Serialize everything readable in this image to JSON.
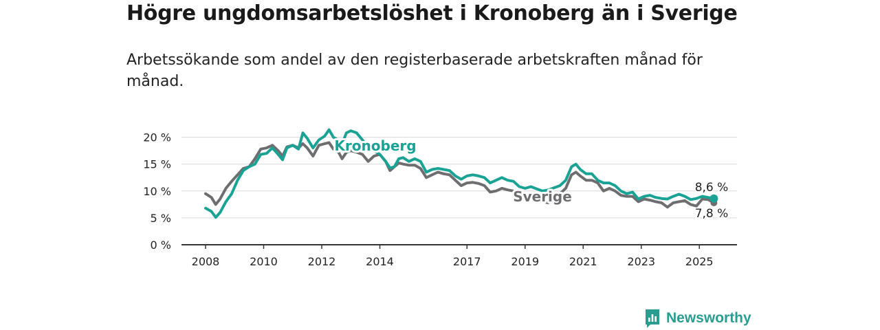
{
  "title": "Högre ungdomsarbetslöshet i Kronoberg än i Sverige",
  "subtitle": "Arbetssökande som andel av den registerbaserade arbetskraften månad för månad.",
  "brand": {
    "name": "Newsworthy",
    "color": "#2a9d91"
  },
  "chart_data": {
    "type": "line",
    "ylim": [
      0,
      22
    ],
    "xlim": [
      2007.5,
      2026.5
    ],
    "grid": true,
    "y_ticks": [
      0,
      5,
      10,
      15,
      20
    ],
    "y_tick_labels": [
      "0 %",
      "5 %",
      "10 %",
      "15 %",
      "20 %"
    ],
    "x_ticks": [
      2008,
      2010,
      2012,
      2014,
      2017,
      2019,
      2021,
      2023,
      2025
    ],
    "x_tick_labels": [
      "2008",
      "2010",
      "2012",
      "2014",
      "2017",
      "2019",
      "2021",
      "2023",
      "2025"
    ],
    "series": [
      {
        "name": "Kronoberg",
        "color": "#1aa395",
        "end_label": "8,6 %",
        "points": [
          [
            2008.0,
            6.8
          ],
          [
            2008.2,
            6.2
          ],
          [
            2008.35,
            5.1
          ],
          [
            2008.5,
            6.0
          ],
          [
            2008.7,
            8.0
          ],
          [
            2008.9,
            9.5
          ],
          [
            2009.1,
            12.0
          ],
          [
            2009.3,
            13.8
          ],
          [
            2009.5,
            14.5
          ],
          [
            2009.7,
            15.0
          ],
          [
            2009.9,
            16.8
          ],
          [
            2010.1,
            17.0
          ],
          [
            2010.3,
            18.0
          ],
          [
            2010.5,
            16.8
          ],
          [
            2010.65,
            15.8
          ],
          [
            2010.8,
            18.0
          ],
          [
            2011.0,
            18.5
          ],
          [
            2011.2,
            17.8
          ],
          [
            2011.35,
            20.8
          ],
          [
            2011.5,
            19.8
          ],
          [
            2011.7,
            18.0
          ],
          [
            2011.9,
            19.5
          ],
          [
            2012.1,
            20.2
          ],
          [
            2012.25,
            21.4
          ],
          [
            2012.4,
            20.0
          ],
          [
            2012.55,
            19.5
          ],
          [
            2012.7,
            18.8
          ],
          [
            2012.85,
            20.8
          ],
          [
            2013.0,
            21.2
          ],
          [
            2013.2,
            20.8
          ],
          [
            2013.4,
            19.5
          ],
          [
            2013.6,
            18.0
          ],
          [
            2013.8,
            17.5
          ],
          [
            2014.0,
            16.8
          ],
          [
            2014.2,
            15.5
          ],
          [
            2014.35,
            14.3
          ],
          [
            2014.5,
            14.5
          ],
          [
            2014.65,
            16.0
          ],
          [
            2014.8,
            16.2
          ],
          [
            2015.0,
            15.5
          ],
          [
            2015.2,
            16.0
          ],
          [
            2015.4,
            15.5
          ],
          [
            2015.6,
            13.5
          ],
          [
            2015.8,
            14.0
          ],
          [
            2016.0,
            14.2
          ],
          [
            2016.2,
            14.0
          ],
          [
            2016.4,
            13.8
          ],
          [
            2016.6,
            12.8
          ],
          [
            2016.8,
            12.2
          ],
          [
            2017.0,
            12.8
          ],
          [
            2017.2,
            13.0
          ],
          [
            2017.4,
            12.8
          ],
          [
            2017.6,
            12.5
          ],
          [
            2017.8,
            11.5
          ],
          [
            2018.0,
            12.0
          ],
          [
            2018.2,
            12.5
          ],
          [
            2018.4,
            12.0
          ],
          [
            2018.6,
            11.8
          ],
          [
            2018.8,
            10.8
          ],
          [
            2019.0,
            10.5
          ],
          [
            2019.2,
            10.8
          ],
          [
            2019.4,
            10.4
          ],
          [
            2019.6,
            10.0
          ],
          [
            2019.8,
            10.2
          ],
          [
            2020.0,
            10.6
          ],
          [
            2020.2,
            11.0
          ],
          [
            2020.4,
            12.0
          ],
          [
            2020.6,
            14.5
          ],
          [
            2020.75,
            15.0
          ],
          [
            2020.9,
            14.0
          ],
          [
            2021.1,
            13.2
          ],
          [
            2021.3,
            13.2
          ],
          [
            2021.5,
            12.0
          ],
          [
            2021.7,
            11.5
          ],
          [
            2021.9,
            11.5
          ],
          [
            2022.1,
            11.0
          ],
          [
            2022.3,
            10.0
          ],
          [
            2022.5,
            9.5
          ],
          [
            2022.7,
            9.8
          ],
          [
            2022.9,
            8.5
          ],
          [
            2023.1,
            9.0
          ],
          [
            2023.3,
            9.2
          ],
          [
            2023.5,
            8.8
          ],
          [
            2023.7,
            8.6
          ],
          [
            2023.9,
            8.5
          ],
          [
            2024.1,
            9.0
          ],
          [
            2024.3,
            9.4
          ],
          [
            2024.5,
            9.0
          ],
          [
            2024.7,
            8.4
          ],
          [
            2024.9,
            8.6
          ],
          [
            2025.1,
            9.0
          ],
          [
            2025.3,
            8.8
          ],
          [
            2025.5,
            8.6
          ]
        ]
      },
      {
        "name": "Sverige",
        "color": "#6e6e70",
        "end_label": "7,8 %",
        "points": [
          [
            2008.0,
            9.5
          ],
          [
            2008.2,
            8.8
          ],
          [
            2008.35,
            7.5
          ],
          [
            2008.5,
            8.5
          ],
          [
            2008.7,
            10.5
          ],
          [
            2008.9,
            11.8
          ],
          [
            2009.1,
            13.0
          ],
          [
            2009.3,
            14.2
          ],
          [
            2009.5,
            14.5
          ],
          [
            2009.7,
            16.0
          ],
          [
            2009.9,
            17.8
          ],
          [
            2010.1,
            18.0
          ],
          [
            2010.3,
            18.5
          ],
          [
            2010.5,
            17.5
          ],
          [
            2010.65,
            16.5
          ],
          [
            2010.8,
            18.2
          ],
          [
            2011.0,
            18.5
          ],
          [
            2011.2,
            18.0
          ],
          [
            2011.35,
            18.8
          ],
          [
            2011.5,
            18.0
          ],
          [
            2011.7,
            16.5
          ],
          [
            2011.9,
            18.5
          ],
          [
            2012.1,
            18.8
          ],
          [
            2012.25,
            19.0
          ],
          [
            2012.4,
            17.8
          ],
          [
            2012.55,
            17.5
          ],
          [
            2012.7,
            16.0
          ],
          [
            2012.85,
            17.2
          ],
          [
            2013.0,
            17.5
          ],
          [
            2013.2,
            17.2
          ],
          [
            2013.4,
            16.8
          ],
          [
            2013.6,
            15.5
          ],
          [
            2013.8,
            16.5
          ],
          [
            2014.0,
            16.8
          ],
          [
            2014.2,
            15.5
          ],
          [
            2014.35,
            13.8
          ],
          [
            2014.5,
            14.5
          ],
          [
            2014.65,
            15.2
          ],
          [
            2014.8,
            15.0
          ],
          [
            2015.0,
            14.8
          ],
          [
            2015.2,
            14.8
          ],
          [
            2015.4,
            14.2
          ],
          [
            2015.6,
            12.5
          ],
          [
            2015.8,
            13.0
          ],
          [
            2016.0,
            13.5
          ],
          [
            2016.2,
            13.2
          ],
          [
            2016.4,
            13.0
          ],
          [
            2016.6,
            12.0
          ],
          [
            2016.8,
            11.0
          ],
          [
            2017.0,
            11.5
          ],
          [
            2017.2,
            11.6
          ],
          [
            2017.4,
            11.4
          ],
          [
            2017.6,
            11.0
          ],
          [
            2017.8,
            9.8
          ],
          [
            2018.0,
            10.0
          ],
          [
            2018.2,
            10.5
          ],
          [
            2018.4,
            10.2
          ],
          [
            2018.6,
            10.0
          ],
          [
            2018.8,
            8.5
          ],
          [
            2019.0,
            9.2
          ],
          [
            2019.2,
            9.5
          ],
          [
            2019.4,
            8.8
          ],
          [
            2019.6,
            8.0
          ],
          [
            2019.8,
            7.8
          ],
          [
            2020.0,
            8.5
          ],
          [
            2020.2,
            9.5
          ],
          [
            2020.4,
            10.5
          ],
          [
            2020.6,
            13.0
          ],
          [
            2020.75,
            13.5
          ],
          [
            2020.9,
            12.8
          ],
          [
            2021.1,
            12.0
          ],
          [
            2021.3,
            12.0
          ],
          [
            2021.5,
            11.5
          ],
          [
            2021.7,
            10.0
          ],
          [
            2021.9,
            10.5
          ],
          [
            2022.1,
            10.0
          ],
          [
            2022.3,
            9.2
          ],
          [
            2022.5,
            9.0
          ],
          [
            2022.7,
            9.0
          ],
          [
            2022.9,
            8.0
          ],
          [
            2023.1,
            8.5
          ],
          [
            2023.3,
            8.3
          ],
          [
            2023.5,
            8.0
          ],
          [
            2023.7,
            7.8
          ],
          [
            2023.9,
            7.0
          ],
          [
            2024.1,
            7.8
          ],
          [
            2024.3,
            8.0
          ],
          [
            2024.5,
            8.2
          ],
          [
            2024.7,
            7.5
          ],
          [
            2024.9,
            7.2
          ],
          [
            2025.1,
            8.5
          ],
          [
            2025.3,
            8.4
          ],
          [
            2025.5,
            7.8
          ]
        ]
      }
    ]
  }
}
